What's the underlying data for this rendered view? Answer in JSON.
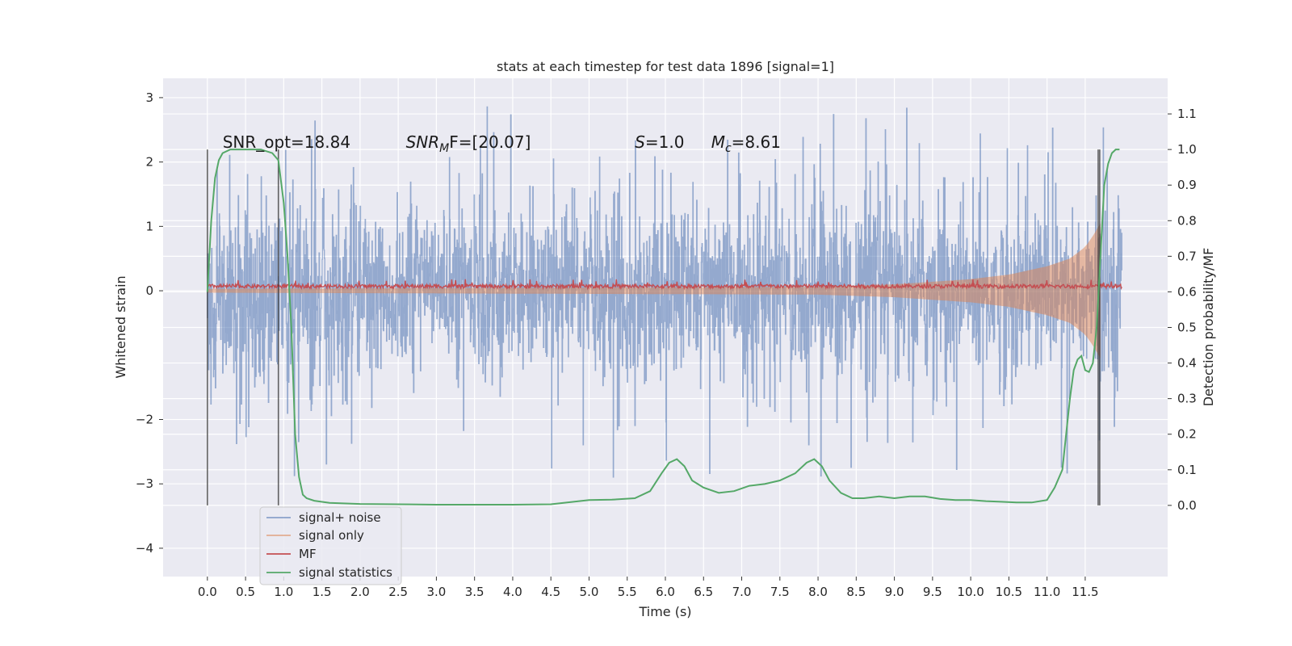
{
  "chart_data": {
    "type": "line",
    "title": "stats at each timestep for test data 1896 [signal=1]",
    "xlabel": "Time (s)",
    "ylabel": "Whitened strain",
    "y2label": "Detection probability/MF",
    "xlim": [
      -0.58,
      12.58
    ],
    "ylim": [
      -4.44,
      3.3
    ],
    "y2lim": [
      -0.2,
      1.2
    ],
    "x_ticks": [
      "0.0",
      "0.5",
      "1.0",
      "1.5",
      "2.0",
      "2.5",
      "3.0",
      "3.5",
      "4.0",
      "4.5",
      "5.0",
      "5.5",
      "6.0",
      "6.5",
      "7.0",
      "7.5",
      "8.0",
      "8.5",
      "9.0",
      "9.5",
      "10.0",
      "10.5",
      "11.0",
      "11.5"
    ],
    "y_ticks": [
      "3",
      "2",
      "1",
      "0",
      "−2",
      "−3",
      "−4"
    ],
    "y2_ticks": [
      "1.1",
      "1.0",
      "0.9",
      "0.8",
      "0.7",
      "0.6",
      "0.5",
      "0.4",
      "0.3",
      "0.2",
      "0.1",
      "0.0"
    ],
    "grid": true,
    "legend_position": "lower-left",
    "annotations": [
      {
        "kind": "text",
        "text": "SNR_opt=18.84"
      },
      {
        "kind": "math",
        "pre": "SNR",
        "sub": "M",
        "post": "F=[20.07]"
      },
      {
        "kind": "math",
        "pre": "S",
        "sub": "",
        "post": "=1.0"
      },
      {
        "kind": "math",
        "pre": "M",
        "sub": "c",
        "post": "=8.61"
      }
    ],
    "vlines_x": [
      0.0,
      0.93,
      11.67,
      11.69
    ],
    "series": [
      {
        "name": "signal+ noise",
        "color": "#4c72b0",
        "axis": "left",
        "t_end": 11.98,
        "std": 0.7,
        "max_abs": 3.0
      },
      {
        "name": "signal only",
        "color": "#dd8452",
        "axis": "left",
        "t_end": 11.7,
        "envelope_t": [
          0.0,
          8.0,
          9.0,
          10.0,
          10.5,
          11.0,
          11.3,
          11.5,
          11.6,
          11.7
        ],
        "envelope_v": [
          0.03,
          0.06,
          0.1,
          0.18,
          0.25,
          0.38,
          0.5,
          0.68,
          0.85,
          1.05
        ]
      },
      {
        "name": "MF",
        "color": "#c44e52",
        "axis": "left",
        "t_end": 11.98,
        "level": 0.07,
        "spread": 0.06
      },
      {
        "name": "signal statistics",
        "color": "#55a868",
        "axis": "right",
        "x": [
          0.0,
          0.05,
          0.1,
          0.15,
          0.2,
          0.3,
          0.5,
          0.7,
          0.85,
          0.93,
          1.0,
          1.05,
          1.1,
          1.15,
          1.2,
          1.25,
          1.3,
          1.4,
          1.6,
          2.0,
          2.5,
          3.0,
          3.5,
          4.0,
          4.5,
          5.0,
          5.3,
          5.6,
          5.8,
          5.95,
          6.05,
          6.15,
          6.25,
          6.35,
          6.5,
          6.7,
          6.9,
          7.1,
          7.3,
          7.5,
          7.7,
          7.85,
          7.95,
          8.05,
          8.15,
          8.3,
          8.45,
          8.6,
          8.8,
          9.0,
          9.2,
          9.4,
          9.6,
          9.8,
          10.0,
          10.2,
          10.4,
          10.6,
          10.8,
          11.0,
          11.1,
          11.2,
          11.25,
          11.3,
          11.35,
          11.4,
          11.45,
          11.5,
          11.55,
          11.6,
          11.65,
          11.7,
          11.75,
          11.8,
          11.85,
          11.9,
          11.95
        ],
        "y": [
          0.6,
          0.8,
          0.92,
          0.97,
          0.99,
          1.0,
          1.0,
          1.0,
          0.99,
          0.97,
          0.85,
          0.7,
          0.5,
          0.2,
          0.08,
          0.03,
          0.02,
          0.013,
          0.007,
          0.004,
          0.003,
          0.002,
          0.002,
          0.002,
          0.003,
          0.015,
          0.016,
          0.02,
          0.04,
          0.09,
          0.12,
          0.13,
          0.11,
          0.07,
          0.05,
          0.035,
          0.04,
          0.055,
          0.06,
          0.07,
          0.09,
          0.12,
          0.13,
          0.11,
          0.07,
          0.035,
          0.02,
          0.02,
          0.025,
          0.02,
          0.025,
          0.025,
          0.018,
          0.015,
          0.015,
          0.012,
          0.01,
          0.008,
          0.008,
          0.015,
          0.05,
          0.1,
          0.2,
          0.3,
          0.38,
          0.41,
          0.42,
          0.38,
          0.375,
          0.4,
          0.5,
          0.7,
          0.9,
          0.96,
          0.99,
          1.0,
          1.0
        ]
      }
    ]
  }
}
